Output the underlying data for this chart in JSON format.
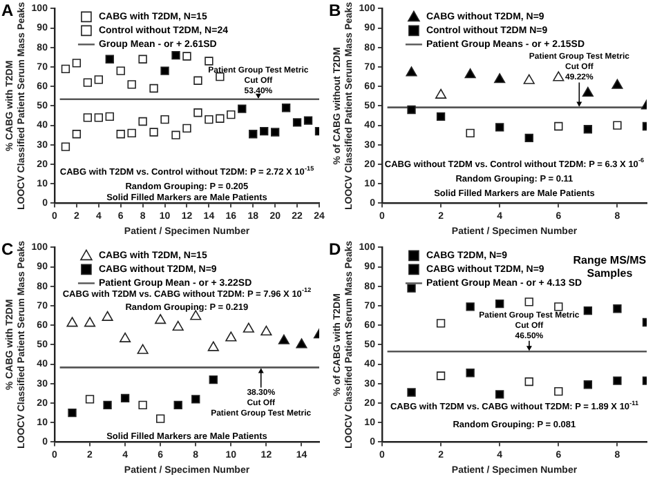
{
  "chart_data": [
    {
      "type": "scatter",
      "title": "A",
      "xlabel": "Patient / Specimen Number",
      "ylabel": "% CABG with T2DM\nLOOCV Classified Patient Serum Mass Peaks",
      "xlim": [
        0,
        24
      ],
      "xticks": [
        0,
        2,
        4,
        6,
        8,
        10,
        12,
        14,
        16,
        18,
        20,
        22,
        24
      ],
      "ylim": [
        0,
        100
      ],
      "yticks": [
        0,
        10,
        20,
        30,
        40,
        50,
        60,
        70,
        80,
        90,
        100
      ],
      "legend": "top",
      "grid": false,
      "series": [
        {
          "name": "CABG with T2DM, N=15",
          "color": "#ffffff",
          "marker": "square",
          "x": [
            1,
            2,
            3,
            4,
            5,
            6,
            7,
            8,
            9,
            10,
            11,
            12,
            13,
            14,
            15
          ],
          "values": [
            69,
            72,
            62,
            63.5,
            74,
            68,
            61,
            74,
            59,
            68,
            76,
            75.5,
            63,
            73,
            65
          ],
          "colors": [
            "#ffffff",
            "#ffffff",
            "#ffffff",
            "#ffffff",
            "#000000",
            "#ffffff",
            "#ffffff",
            "#ffffff",
            "#ffffff",
            "#000000",
            "#000000",
            "#ffffff",
            "#ffffff",
            "#ffffff",
            "#ffffff"
          ]
        },
        {
          "name": "Control without T2DM, N=24",
          "color": "#ffffff",
          "marker": "square",
          "x": [
            1,
            2,
            3,
            4,
            5,
            6,
            7,
            8,
            9,
            10,
            11,
            12,
            13,
            14,
            15,
            16,
            17,
            18,
            19,
            20,
            21,
            22,
            23,
            24
          ],
          "values": [
            29,
            35.5,
            44,
            44,
            44.5,
            35.5,
            36,
            42,
            36.5,
            43,
            35,
            38.5,
            46.5,
            43,
            43.5,
            45.5,
            48.5,
            35.5,
            37,
            36.5,
            49,
            41.5,
            42.5,
            37
          ],
          "colors": [
            "#ffffff",
            "#ffffff",
            "#ffffff",
            "#ffffff",
            "#ffffff",
            "#ffffff",
            "#ffffff",
            "#ffffff",
            "#ffffff",
            "#ffffff",
            "#ffffff",
            "#ffffff",
            "#ffffff",
            "#ffffff",
            "#ffffff",
            "#ffffff",
            "#000000",
            "#000000",
            "#000000",
            "#000000",
            "#000000",
            "#000000",
            "#000000",
            "#000000"
          ]
        }
      ],
      "ref_lines": [
        {
          "axis": "y",
          "value": 53.4,
          "label": "Group Mean - or + 2.61SD",
          "color": "#555555"
        }
      ],
      "annotations": [
        "Patient Group Test Metric\nCut Off\n53.40%",
        "CABG with T2DM vs. Control without T2DM: P = 2.72 X 10$^{-15}$",
        "Random Grouping: P = 0.205",
        "Solid Filled Markers are Male Patients"
      ]
    },
    {
      "type": "scatter",
      "title": "B",
      "xlabel": "Patient / Specimen Number",
      "ylabel": "% of CABG without T2DM\nLOOCV Classified Patient Serum Mass Peaks",
      "xlim": [
        0,
        9
      ],
      "xticks": [
        0,
        2,
        4,
        6,
        8
      ],
      "ylim": [
        0,
        100
      ],
      "yticks": [
        0,
        10,
        20,
        30,
        40,
        50,
        60,
        70,
        80,
        90,
        100
      ],
      "legend": "top",
      "grid": false,
      "series": [
        {
          "name": "CABG without T2DM, N=9",
          "color": "#000000",
          "marker": "triangle",
          "x": [
            1,
            2,
            3,
            4,
            5,
            6,
            7,
            8,
            9
          ],
          "values": [
            67,
            55.5,
            66,
            63.5,
            63,
            64.5,
            56.5,
            60.5,
            50
          ],
          "colors": [
            "#000000",
            "#ffffff",
            "#000000",
            "#000000",
            "#ffffff",
            "#ffffff",
            "#000000",
            "#000000",
            "#000000"
          ]
        },
        {
          "name": "Control without T2DM N=9",
          "color": "#000000",
          "marker": "square",
          "x": [
            1,
            2,
            3,
            4,
            5,
            6,
            7,
            8,
            9
          ],
          "values": [
            48,
            44.5,
            36,
            39,
            33.5,
            39.5,
            38,
            40,
            39.5
          ],
          "colors": [
            "#000000",
            "#000000",
            "#ffffff",
            "#000000",
            "#000000",
            "#ffffff",
            "#000000",
            "#ffffff",
            "#000000"
          ]
        }
      ],
      "ref_lines": [
        {
          "axis": "y",
          "value": 49.22,
          "label": "Patient Group Means - or + 2.15SD",
          "color": "#555555"
        }
      ],
      "annotations": [
        "Patient Group Test Metric\nCut Off\n49.22%",
        "CABG without T2DM vs. Control without T2DM: P = 6.3 X 10$^{-6}$",
        "Random Grouping: P = 0.11",
        "Solid Filled Markers are Male Patients"
      ]
    },
    {
      "type": "scatter",
      "title": "C",
      "xlabel": "Patient / Specimen Number",
      "ylabel": "% CABG with T2DM\nLOOCV Classified Patient Serum Mass Peaks",
      "xlim": [
        0,
        15
      ],
      "xticks": [
        0,
        2,
        4,
        6,
        8,
        10,
        12,
        14
      ],
      "ylim": [
        0,
        100
      ],
      "yticks": [
        0,
        10,
        20,
        30,
        40,
        50,
        60,
        70,
        80,
        90,
        100
      ],
      "legend": "top",
      "grid": false,
      "series": [
        {
          "name": "CABG with T2DM, N=15",
          "color": "#ffffff",
          "marker": "triangle",
          "x": [
            1,
            2,
            3,
            4,
            5,
            6,
            7,
            8,
            9,
            10,
            11,
            12,
            13,
            14,
            15
          ],
          "values": [
            61,
            61,
            64,
            53,
            47,
            62.5,
            59,
            64.5,
            48.5,
            53.5,
            58,
            56.5,
            52,
            50,
            55
          ],
          "colors": [
            "#ffffff",
            "#ffffff",
            "#ffffff",
            "#ffffff",
            "#ffffff",
            "#ffffff",
            "#ffffff",
            "#ffffff",
            "#ffffff",
            "#ffffff",
            "#ffffff",
            "#ffffff",
            "#000000",
            "#000000",
            "#000000"
          ]
        },
        {
          "name": "CABG without T2DM, N=9",
          "color": "#000000",
          "marker": "square",
          "x": [
            1,
            2,
            3,
            4,
            5,
            6,
            7,
            8,
            9
          ],
          "values": [
            15,
            22,
            19,
            22.5,
            19,
            12,
            19,
            22,
            32
          ],
          "colors": [
            "#000000",
            "#ffffff",
            "#000000",
            "#000000",
            "#ffffff",
            "#ffffff",
            "#000000",
            "#000000",
            "#000000"
          ]
        }
      ],
      "ref_lines": [
        {
          "axis": "y",
          "value": 38.3,
          "label": "Patient Group Mean - or + 3.22SD",
          "color": "#555555"
        }
      ],
      "annotations": [
        "38.30%\nCut Off\nPatient Group Test Metric",
        "CABG with T2DM vs. CABG without T2DM: P = 7.96 X 10$^{-12}$",
        "Random Grouping: P = 0.219",
        "Solid Filled Markers are Male Patients"
      ]
    },
    {
      "type": "scatter",
      "title": "D",
      "xlabel": "Patient / Specimen Number",
      "ylabel": "% of CABG with T2DM\nLOOCV Classified Patient Serum Mass Peaks",
      "xlim": [
        0,
        9
      ],
      "xticks": [
        0,
        2,
        4,
        6,
        8
      ],
      "ylim": [
        0,
        100
      ],
      "yticks": [
        0,
        10,
        20,
        30,
        40,
        50,
        60,
        70,
        80,
        90,
        100
      ],
      "legend": "top",
      "grid": false,
      "series": [
        {
          "name": "CABG T2DM, N=9",
          "color": "#000000",
          "marker": "square",
          "x": [
            1,
            2,
            3,
            4,
            5,
            6,
            7,
            8,
            9
          ],
          "values": [
            79,
            61,
            69.5,
            71,
            72,
            69.5,
            67.5,
            68.5,
            61.5
          ],
          "colors": [
            "#000000",
            "#ffffff",
            "#000000",
            "#000000",
            "#ffffff",
            "#ffffff",
            "#000000",
            "#000000",
            "#000000"
          ]
        },
        {
          "name": "CABG without T2DM, N=9",
          "color": "#000000",
          "marker": "square",
          "x": [
            1,
            2,
            3,
            4,
            5,
            6,
            7,
            8,
            9
          ],
          "values": [
            25.5,
            34,
            35.5,
            24.5,
            31,
            26,
            29.5,
            31.5,
            31.5
          ],
          "colors": [
            "#000000",
            "#ffffff",
            "#000000",
            "#000000",
            "#ffffff",
            "#ffffff",
            "#000000",
            "#000000",
            "#000000"
          ]
        }
      ],
      "ref_lines": [
        {
          "axis": "y",
          "value": 46.5,
          "label": "Patient Group Mean - or + 4.13 SD",
          "color": "#555555"
        }
      ],
      "annotations": [
        "Patient Group Test Metric\nCut Off\n46.50%",
        "Range MS/MS\nSamples",
        "CABG with T2DM vs. CABG without T2DM: P = 1.89 X 10$^{-11}$",
        "Random Grouping: P = 0.081"
      ]
    }
  ]
}
